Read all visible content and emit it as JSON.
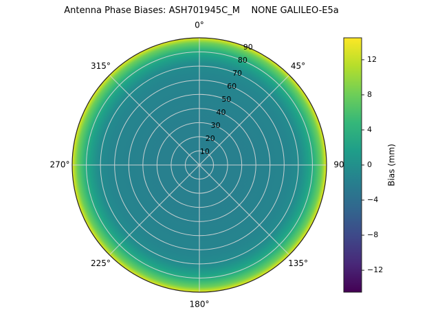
{
  "title": "Antenna Phase Biases: ASH701945C_M    NONE GALILEO-E5a",
  "chart_data": {
    "type": "heatmap",
    "projection": "polar",
    "title": "Antenna Phase Biases: ASH701945C_M    NONE GALILEO-E5a",
    "angular_ticks": [
      {
        "label": "0°",
        "angle_deg": 0
      },
      {
        "label": "45°",
        "angle_deg": 45
      },
      {
        "label": "90",
        "angle_deg": 90
      },
      {
        "label": "135°",
        "angle_deg": 135
      },
      {
        "label": "180°",
        "angle_deg": 180
      },
      {
        "label": "225°",
        "angle_deg": 225
      },
      {
        "label": "270°",
        "angle_deg": 270
      },
      {
        "label": "315°",
        "angle_deg": 315
      }
    ],
    "radial_ticks": {
      "values": [
        10,
        20,
        30,
        40,
        50,
        60,
        70,
        80,
        90
      ],
      "max": 90,
      "label_angle_deg": 22.5
    },
    "radial_profile": {
      "zenith_deg": [
        0,
        10,
        20,
        30,
        40,
        50,
        60,
        70,
        80,
        85,
        90
      ],
      "bias_mm": [
        -1.5,
        -1.5,
        -1.5,
        -1.5,
        -1,
        -0.5,
        0,
        0.5,
        2.5,
        7,
        13
      ]
    },
    "colorbar": {
      "label": "Bias (mm)",
      "ticks": [
        -12,
        -8,
        -4,
        0,
        4,
        8,
        12
      ],
      "range": [
        -14.5,
        14.5
      ],
      "colormap": "viridis",
      "colors_top_to_bottom": [
        "#fde725",
        "#b5de2b",
        "#6ece58",
        "#35b779",
        "#1f9e89",
        "#26828e",
        "#31688e",
        "#3e4989",
        "#482878",
        "#440154"
      ]
    },
    "disk_gradient": [
      {
        "at": 0.0,
        "color": "#297e8e"
      },
      {
        "at": 0.45,
        "color": "#27818e"
      },
      {
        "at": 0.7,
        "color": "#25858e"
      },
      {
        "at": 0.8,
        "color": "#228d8d"
      },
      {
        "at": 0.86,
        "color": "#1fa188"
      },
      {
        "at": 0.9,
        "color": "#2cb17e"
      },
      {
        "at": 0.93,
        "color": "#48c16e"
      },
      {
        "at": 0.96,
        "color": "#6ece58"
      },
      {
        "at": 0.98,
        "color": "#a8db34"
      },
      {
        "at": 1.0,
        "color": "#e9e51a"
      }
    ],
    "grid": {
      "color": "#d9d9d9",
      "spoke_step_deg": 45,
      "grid_on": true
    }
  }
}
